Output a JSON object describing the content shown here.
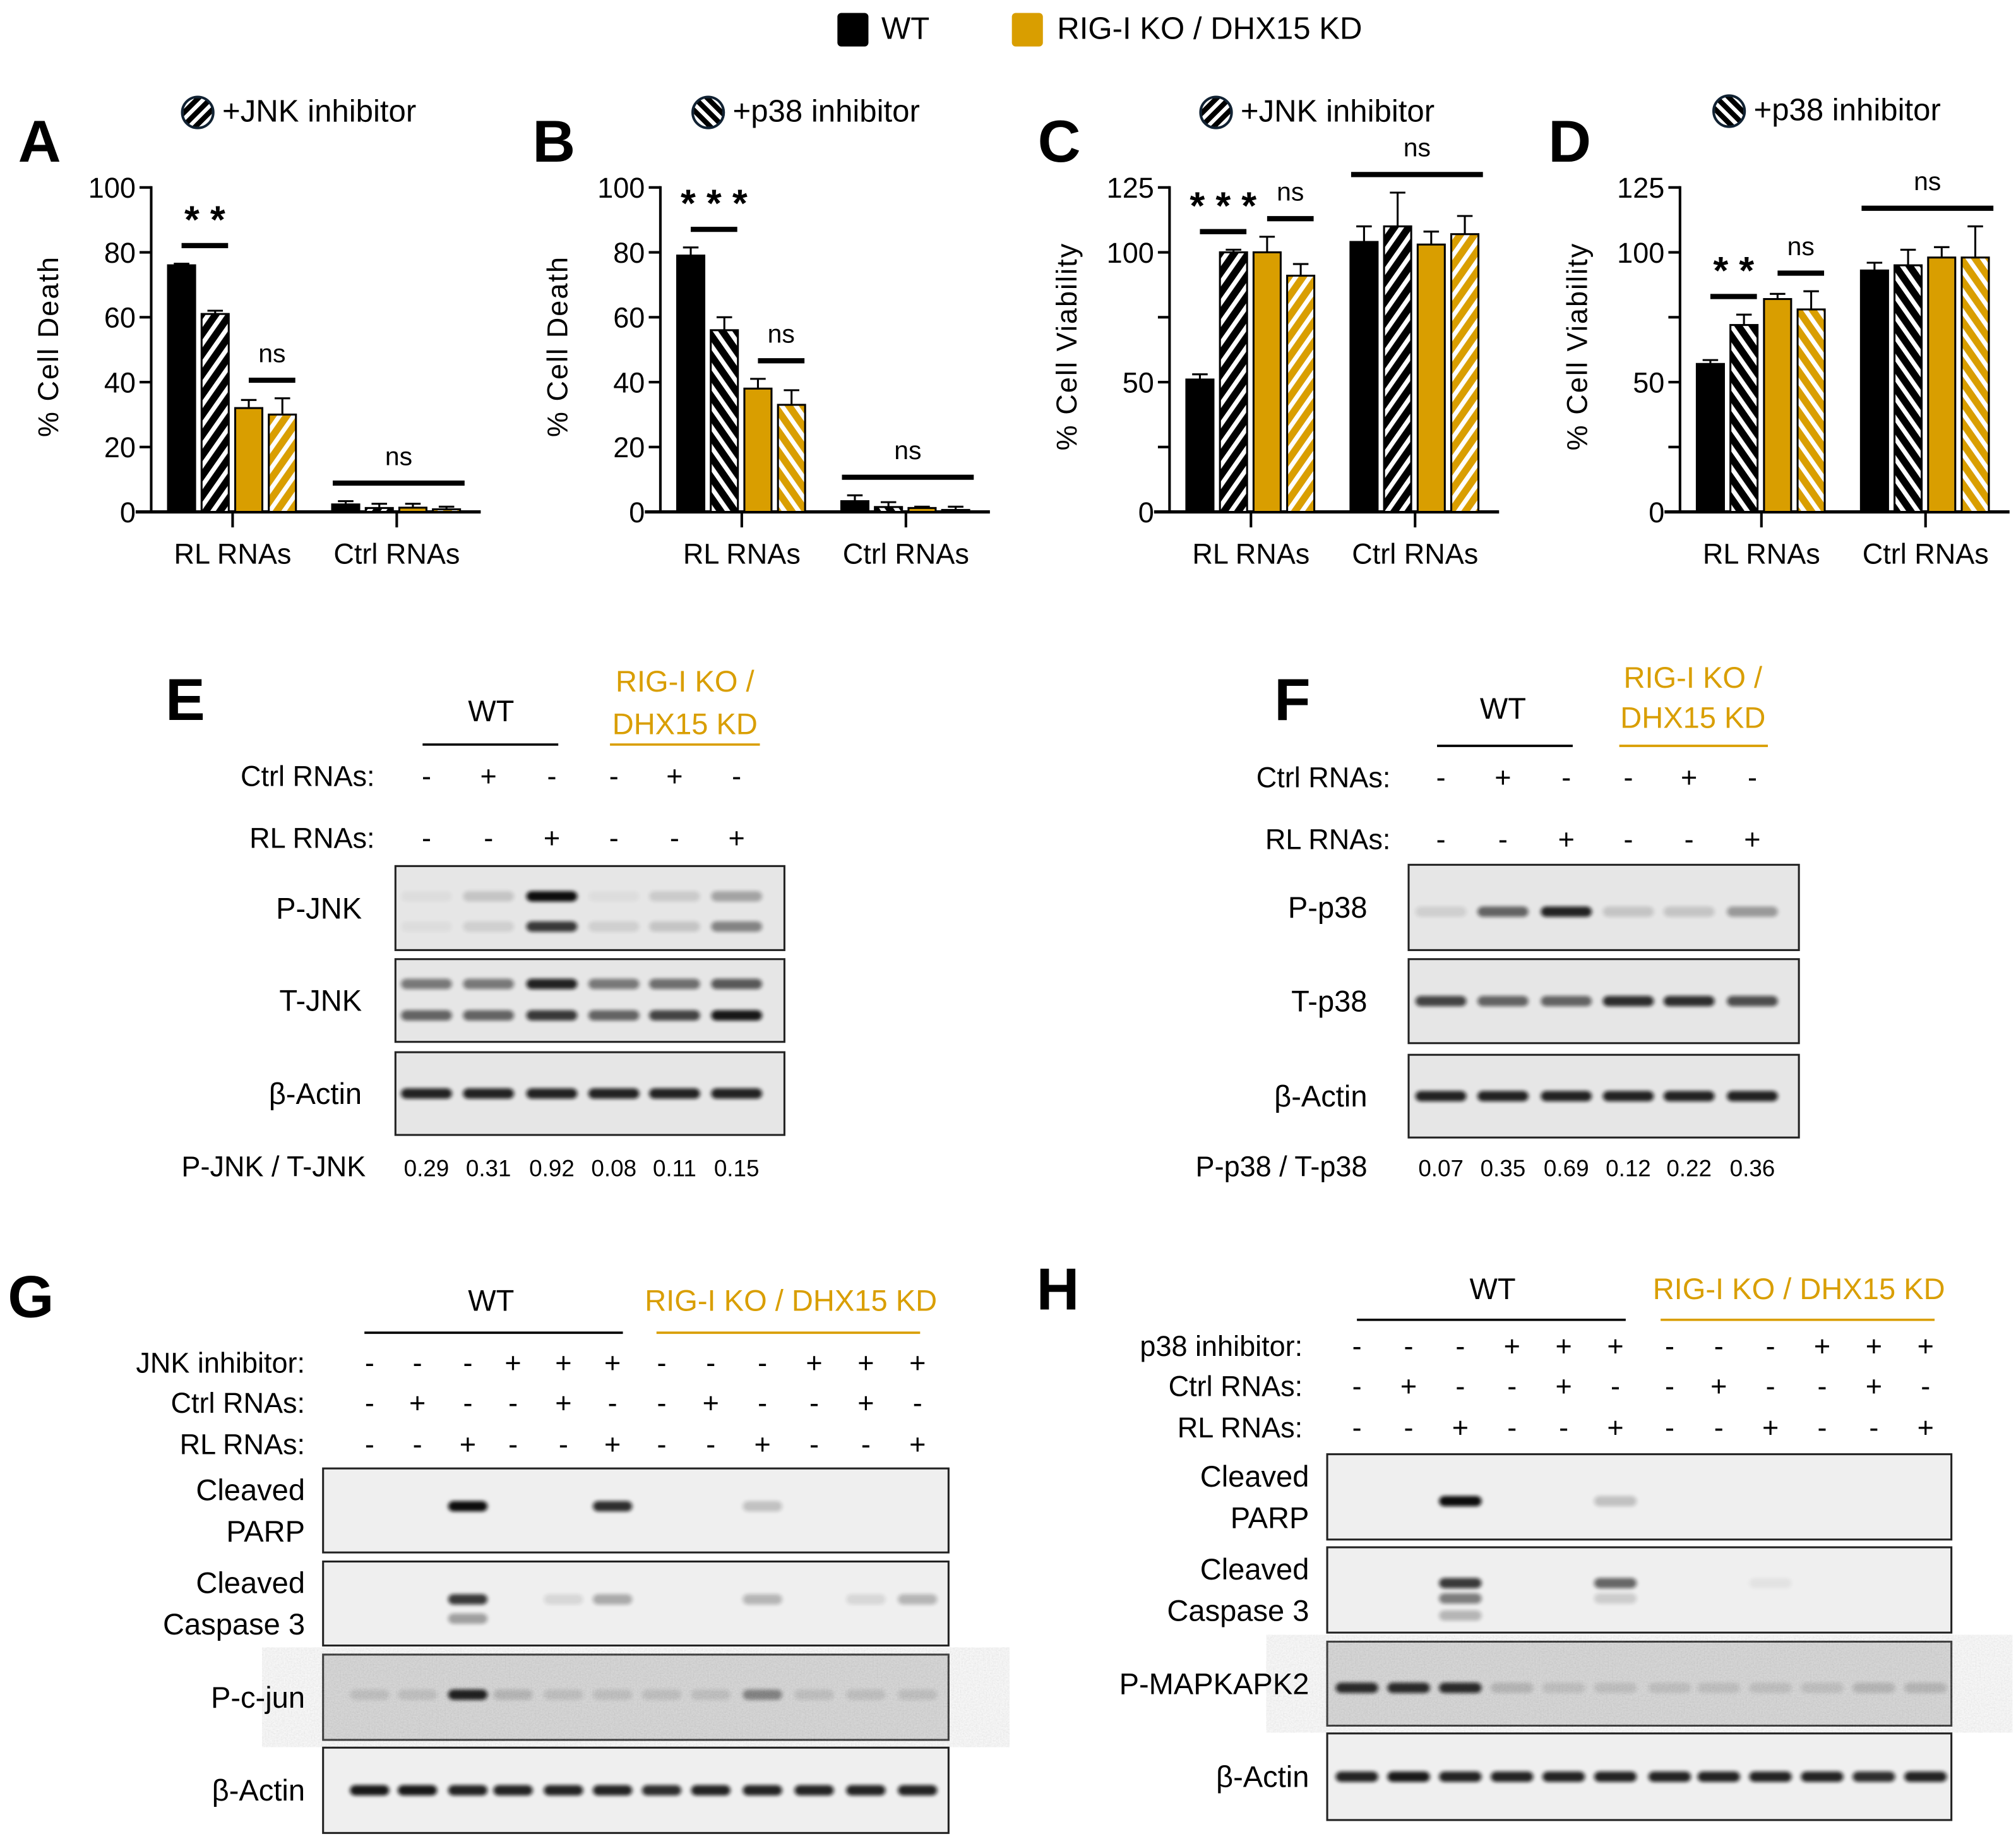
{
  "legend": {
    "items": [
      {
        "label": "WT",
        "color": "#000000"
      },
      {
        "label": "RIG-I KO / DHX15 KD",
        "color": "#D99E00"
      }
    ]
  },
  "chart_data": [
    {
      "panel": "A",
      "type": "bar",
      "title": "+JNK inhibitor",
      "hatch": "fwd",
      "ylabel": "% Cell Death",
      "xlabel": "",
      "categories": [
        "RL RNAs",
        "Ctrl RNAs"
      ],
      "ylim": [
        0,
        100
      ],
      "yticks": [
        0,
        20,
        40,
        60,
        80,
        100
      ],
      "ytick_labels": [
        "0",
        "20",
        "40",
        "60",
        "80",
        "100"
      ],
      "series": [
        {
          "genotype": 0,
          "inhibitor": false,
          "values": [
            76,
            2.3
          ],
          "errors": [
            0.5,
            1.0
          ]
        },
        {
          "genotype": 0,
          "inhibitor": true,
          "values": [
            61,
            1.2
          ],
          "errors": [
            1.0,
            1.3
          ]
        },
        {
          "genotype": 1,
          "inhibitor": false,
          "values": [
            32,
            1.3
          ],
          "errors": [
            2.5,
            1.2
          ]
        },
        {
          "genotype": 1,
          "inhibitor": true,
          "values": [
            30,
            0.8
          ],
          "errors": [
            5.0,
            0.8
          ]
        }
      ],
      "annotations": [
        {
          "label": "* *",
          "category": 0,
          "from": 0,
          "to": 1
        },
        {
          "label": "ns",
          "category": 0,
          "from": 2,
          "to": 3
        },
        {
          "label": "ns",
          "category": 1,
          "from": 0,
          "to": 3
        }
      ]
    },
    {
      "panel": "B",
      "type": "bar",
      "title": "+p38 inhibitor",
      "hatch": "back",
      "ylabel": "% Cell Death",
      "xlabel": "",
      "categories": [
        "RL RNAs",
        "Ctrl RNAs"
      ],
      "ylim": [
        0,
        100
      ],
      "yticks": [
        0,
        20,
        40,
        60,
        80,
        100
      ],
      "ytick_labels": [
        "0",
        "20",
        "40",
        "60",
        "80",
        "100"
      ],
      "series": [
        {
          "genotype": 0,
          "inhibitor": false,
          "values": [
            79,
            3.3
          ],
          "errors": [
            2.5,
            1.8
          ]
        },
        {
          "genotype": 0,
          "inhibitor": true,
          "values": [
            56,
            1.5
          ],
          "errors": [
            4.0,
            1.5
          ]
        },
        {
          "genotype": 1,
          "inhibitor": false,
          "values": [
            38,
            1.2
          ],
          "errors": [
            3.0,
            0.4
          ]
        },
        {
          "genotype": 1,
          "inhibitor": true,
          "values": [
            33,
            0.6
          ],
          "errors": [
            4.5,
            1.0
          ]
        }
      ],
      "annotations": [
        {
          "label": "* * *",
          "category": 0,
          "from": 0,
          "to": 1
        },
        {
          "label": "ns",
          "category": 0,
          "from": 2,
          "to": 3
        },
        {
          "label": "ns",
          "category": 1,
          "from": 0,
          "to": 3
        }
      ]
    },
    {
      "panel": "C",
      "type": "bar",
      "title": "+JNK inhibitor",
      "hatch": "fwd",
      "ylabel": "% Cell Viability",
      "xlabel": "",
      "categories": [
        "RL RNAs",
        "Ctrl RNAs"
      ],
      "ylim": [
        0,
        125
      ],
      "yticks": [
        0,
        25,
        50,
        75,
        100,
        125
      ],
      "ytick_labels": [
        "0",
        "",
        "50",
        "",
        "100",
        "125"
      ],
      "series": [
        {
          "genotype": 0,
          "inhibitor": false,
          "values": [
            51,
            104
          ],
          "errors": [
            2,
            6
          ]
        },
        {
          "genotype": 0,
          "inhibitor": true,
          "values": [
            100,
            110
          ],
          "errors": [
            1,
            13
          ]
        },
        {
          "genotype": 1,
          "inhibitor": false,
          "values": [
            100,
            103
          ],
          "errors": [
            6,
            5
          ]
        },
        {
          "genotype": 1,
          "inhibitor": true,
          "values": [
            91,
            107
          ],
          "errors": [
            4.5,
            7
          ]
        }
      ],
      "annotations": [
        {
          "label": "* * *",
          "category": 0,
          "from": 0,
          "to": 1
        },
        {
          "label": "ns",
          "category": 0,
          "from": 2,
          "to": 3
        },
        {
          "label": "ns",
          "category": 1,
          "from": 0,
          "to": 3
        }
      ]
    },
    {
      "panel": "D",
      "type": "bar",
      "title": "+p38 inhibitor",
      "hatch": "back",
      "ylabel": "% Cell Viability",
      "xlabel": "",
      "categories": [
        "RL RNAs",
        "Ctrl RNAs"
      ],
      "ylim": [
        0,
        125
      ],
      "yticks": [
        0,
        25,
        50,
        75,
        100,
        125
      ],
      "ytick_labels": [
        "0",
        "",
        "50",
        "",
        "100",
        "125"
      ],
      "series": [
        {
          "genotype": 0,
          "inhibitor": false,
          "values": [
            57,
            93
          ],
          "errors": [
            1.5,
            3
          ]
        },
        {
          "genotype": 0,
          "inhibitor": true,
          "values": [
            72,
            95
          ],
          "errors": [
            4,
            6
          ]
        },
        {
          "genotype": 1,
          "inhibitor": false,
          "values": [
            82,
            98
          ],
          "errors": [
            2,
            4
          ]
        },
        {
          "genotype": 1,
          "inhibitor": true,
          "values": [
            78,
            98
          ],
          "errors": [
            7,
            12
          ]
        }
      ],
      "annotations": [
        {
          "label": "* *",
          "category": 0,
          "from": 0,
          "to": 1
        },
        {
          "label": "ns",
          "category": 0,
          "from": 2,
          "to": 3
        },
        {
          "label": "ns",
          "category": 1,
          "from": 0,
          "to": 3
        }
      ]
    }
  ],
  "blots": [
    {
      "panel": "E",
      "genotypes": [
        [
          "WT"
        ],
        [
          "RIG-I KO /",
          "DHX15 KD"
        ]
      ],
      "conditions": [
        {
          "label": "Ctrl RNAs:",
          "signs": [
            "-",
            "+",
            "-",
            "-",
            "+",
            "-"
          ]
        },
        {
          "label": "RL RNAs:",
          "signs": [
            "-",
            "-",
            "+",
            "-",
            "-",
            "+"
          ]
        }
      ],
      "rows": [
        {
          "label": [
            "P-JNK"
          ],
          "bands": [
            [
              0.04,
              0.15,
              1.0,
              0.04,
              0.12,
              0.3
            ],
            [
              0.04,
              0.1,
              0.8,
              0.1,
              0.15,
              0.45
            ]
          ]
        },
        {
          "label": [
            "T-JNK"
          ],
          "bands": [
            [
              0.5,
              0.5,
              0.9,
              0.5,
              0.55,
              0.65
            ],
            [
              0.6,
              0.6,
              0.8,
              0.6,
              0.75,
              0.95
            ]
          ]
        },
        {
          "label": [
            "β-Actin"
          ],
          "bands": [
            [
              0.9,
              0.9,
              0.9,
              0.9,
              0.9,
              0.9
            ]
          ]
        }
      ],
      "ratio": {
        "label": "P-JNK / T-JNK",
        "values": [
          "0.29",
          "0.31",
          "0.92",
          "0.08",
          "0.11",
          "0.15"
        ]
      }
    },
    {
      "panel": "F",
      "genotypes": [
        [
          "WT"
        ],
        [
          "RIG-I KO /",
          "DHX15 KD"
        ]
      ],
      "conditions": [
        {
          "label": "Ctrl RNAs:",
          "signs": [
            "-",
            "+",
            "-",
            "-",
            "+",
            "-"
          ]
        },
        {
          "label": "RL RNAs:",
          "signs": [
            "-",
            "-",
            "+",
            "-",
            "-",
            "+"
          ]
        }
      ],
      "rows": [
        {
          "label": [
            "P-p38"
          ],
          "bands": [
            [
              0.1,
              0.6,
              0.9,
              0.15,
              0.15,
              0.35
            ]
          ]
        },
        {
          "label": [
            "T-p38"
          ],
          "bands": [
            [
              0.75,
              0.6,
              0.6,
              0.85,
              0.85,
              0.7
            ]
          ]
        },
        {
          "label": [
            "β-Actin"
          ],
          "bands": [
            [
              0.9,
              0.9,
              0.9,
              0.9,
              0.9,
              0.9
            ]
          ]
        }
      ],
      "ratio": {
        "label": "P-p38 / T-p38",
        "values": [
          "0.07",
          "0.35",
          "0.69",
          "0.12",
          "0.22",
          "0.36"
        ]
      }
    },
    {
      "panel": "G",
      "genotypes": [
        [
          "WT"
        ],
        [
          "RIG-I KO / DHX15 KD"
        ]
      ],
      "conditions": [
        {
          "label": "JNK inhibitor:",
          "signs": [
            "-",
            "-",
            "-",
            "+",
            "+",
            "+",
            "-",
            "-",
            "-",
            "+",
            "+",
            "+"
          ]
        },
        {
          "label": "Ctrl RNAs:",
          "signs": [
            "-",
            "+",
            "-",
            "-",
            "+",
            "-",
            "-",
            "+",
            "-",
            "-",
            "+",
            "-"
          ]
        },
        {
          "label": "RL RNAs:",
          "signs": [
            "-",
            "-",
            "+",
            "-",
            "-",
            "+",
            "-",
            "-",
            "+",
            "-",
            "-",
            "+"
          ]
        }
      ],
      "rows": [
        {
          "label": [
            "Cleaved",
            "PARP"
          ],
          "bands": [
            [
              0,
              0,
              1.0,
              0,
              0,
              0.85,
              0,
              0,
              0.2,
              0,
              0,
              0
            ]
          ]
        },
        {
          "label": [
            "Cleaved",
            "Caspase 3"
          ],
          "bands": [
            [
              0,
              0,
              0.8,
              0,
              0.1,
              0.3,
              0,
              0,
              0.25,
              0,
              0.1,
              0.25
            ],
            [
              0,
              0,
              0.35,
              0,
              0,
              0,
              0,
              0,
              0,
              0,
              0,
              0
            ]
          ]
        },
        {
          "label": [
            "P-c-jun"
          ],
          "bands": [
            [
              0.1,
              0.1,
              0.9,
              0.15,
              0.1,
              0.1,
              0.1,
              0.1,
              0.4,
              0.1,
              0.1,
              0.1
            ]
          ]
        },
        {
          "label": [
            "β-Actin"
          ],
          "bands": [
            [
              0.95,
              0.95,
              0.9,
              0.9,
              0.9,
              0.9,
              0.85,
              0.9,
              0.9,
              0.9,
              0.9,
              0.9
            ]
          ]
        }
      ]
    },
    {
      "panel": "H",
      "genotypes": [
        [
          "WT"
        ],
        [
          "RIG-I KO / DHX15 KD"
        ]
      ],
      "conditions": [
        {
          "label": "p38 inhibitor:",
          "signs": [
            "-",
            "-",
            "-",
            "+",
            "+",
            "+",
            "-",
            "-",
            "-",
            "+",
            "+",
            "+"
          ]
        },
        {
          "label": "Ctrl RNAs:",
          "signs": [
            "-",
            "+",
            "-",
            "-",
            "+",
            "-",
            "-",
            "+",
            "-",
            "-",
            "+",
            "-"
          ]
        },
        {
          "label": "RL RNAs:",
          "signs": [
            "-",
            "-",
            "+",
            "-",
            "-",
            "+",
            "-",
            "-",
            "+",
            "-",
            "-",
            "+"
          ]
        }
      ],
      "rows": [
        {
          "label": [
            "Cleaved",
            "PARP"
          ],
          "bands": [
            [
              0,
              0,
              1.0,
              0,
              0,
              0.2,
              0,
              0,
              0,
              0,
              0,
              0
            ]
          ]
        },
        {
          "label": [
            "Cleaved",
            "Caspase 3"
          ],
          "bands": [
            [
              0,
              0,
              0.8,
              0,
              0,
              0.6,
              0,
              0,
              0.05,
              0,
              0,
              0
            ],
            [
              0,
              0,
              0.5,
              0,
              0,
              0.15,
              0,
              0,
              0,
              0,
              0,
              0
            ],
            [
              0,
              0,
              0.25,
              0,
              0,
              0,
              0,
              0,
              0,
              0,
              0,
              0
            ]
          ]
        },
        {
          "label": [
            "P-MAPKAPK2"
          ],
          "bands": [
            [
              0.85,
              0.85,
              0.85,
              0.15,
              0.1,
              0.1,
              0.1,
              0.1,
              0.1,
              0.1,
              0.15,
              0.15
            ]
          ]
        },
        {
          "label": [
            "β-Actin"
          ],
          "bands": [
            [
              0.9,
              0.95,
              0.9,
              0.9,
              0.9,
              0.9,
              0.9,
              0.9,
              0.9,
              0.9,
              0.85,
              0.9
            ]
          ]
        }
      ]
    }
  ]
}
